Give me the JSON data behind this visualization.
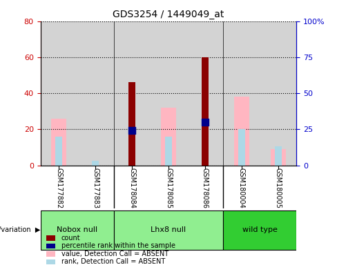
{
  "title": "GDS3254 / 1449049_at",
  "samples": [
    "GSM177882",
    "GSM177883",
    "GSM178084",
    "GSM178085",
    "GSM178086",
    "GSM180004",
    "GSM180005"
  ],
  "groups": [
    {
      "name": "Nobox null",
      "indices": [
        0,
        1
      ],
      "color": "#90EE90"
    },
    {
      "name": "Lhx8 null",
      "indices": [
        2,
        3,
        4
      ],
      "color": "#90EE90"
    },
    {
      "name": "wild type",
      "indices": [
        5,
        6
      ],
      "color": "#32CD32"
    }
  ],
  "red_bars": [
    null,
    null,
    46,
    null,
    60,
    null,
    null
  ],
  "blue_dots": [
    null,
    null,
    24,
    null,
    30,
    null,
    null
  ],
  "pink_bars": [
    26,
    null,
    null,
    32,
    null,
    38,
    9
  ],
  "lightblue_bars": [
    20,
    3,
    null,
    20,
    null,
    25,
    13
  ],
  "ylim_left": [
    0,
    80
  ],
  "ylim_right": [
    0,
    100
  ],
  "yticks_left": [
    0,
    20,
    40,
    60,
    80
  ],
  "yticks_right": [
    0,
    25,
    50,
    75,
    100
  ],
  "ytick_labels_left": [
    "0",
    "20",
    "40",
    "60",
    "80"
  ],
  "ytick_labels_right": [
    "0",
    "25",
    "50",
    "75",
    "100%"
  ],
  "left_axis_color": "#CC0000",
  "right_axis_color": "#0000CC",
  "bar_width": 0.4,
  "dot_size": 60,
  "pink_color": "#FFB6C1",
  "lightblue_color": "#ADD8E6",
  "red_color": "#8B0000",
  "blue_color": "#00008B",
  "bg_color": "#D3D3D3",
  "group_nobox_color": "#90EE90",
  "group_lhx8_color": "#90EE90",
  "group_wild_color": "#32CD32",
  "legend_items": [
    {
      "color": "#8B0000",
      "marker": "s",
      "label": "count"
    },
    {
      "color": "#00008B",
      "marker": "s",
      "label": "percentile rank within the sample"
    },
    {
      "color": "#FFB6C1",
      "marker": "s",
      "label": "value, Detection Call = ABSENT"
    },
    {
      "color": "#ADD8E6",
      "marker": "s",
      "label": "rank, Detection Call = ABSENT"
    }
  ]
}
